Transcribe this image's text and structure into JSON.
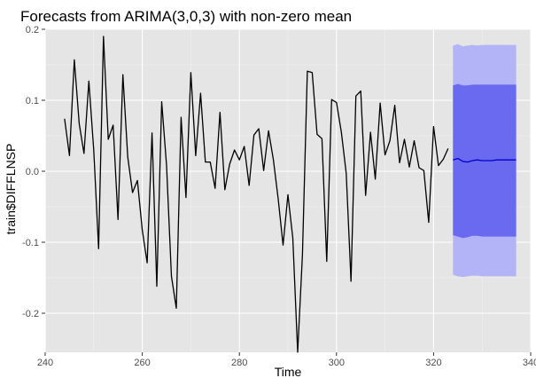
{
  "chart_data": {
    "type": "line",
    "title": "Forecasts from ARIMA(3,0,3) with non-zero mean",
    "xlabel": "Time",
    "ylabel": "train$DIFFLNSP",
    "xlim": [
      240,
      340
    ],
    "ylim": [
      -0.255,
      0.2
    ],
    "x_ticks": [
      240,
      260,
      280,
      300,
      320,
      340
    ],
    "y_ticks": [
      -0.2,
      -0.1,
      0.0,
      0.1,
      0.2
    ],
    "y_tick_labels": [
      "-0.2",
      "-0.1",
      "0.0",
      "0.1",
      "0.2"
    ],
    "grid": true,
    "panel_background": "#e5e5e5",
    "series": [
      {
        "type": "line",
        "color": "#000000",
        "x": [
          244,
          245,
          246,
          247,
          248,
          249,
          250,
          251,
          252,
          253,
          254,
          255,
          256,
          257,
          258,
          259,
          260,
          261,
          262,
          263,
          264,
          265,
          266,
          267,
          268,
          269,
          270,
          271,
          272,
          273,
          274,
          275,
          276,
          277,
          278,
          279,
          280,
          281,
          282,
          283,
          284,
          285,
          286,
          287,
          288,
          289,
          290,
          291,
          292,
          293,
          294,
          295,
          296,
          297,
          298,
          299,
          300,
          301,
          302,
          303,
          304,
          305,
          306,
          307,
          308,
          309,
          310,
          311,
          312,
          313,
          314,
          315,
          316,
          317,
          318,
          319,
          320,
          321,
          322,
          323
        ],
        "y": [
          0.074,
          0.022,
          0.157,
          0.067,
          0.025,
          0.127,
          0.03,
          -0.109,
          0.19,
          0.045,
          0.065,
          -0.068,
          0.136,
          0.02,
          -0.03,
          -0.013,
          -0.083,
          -0.129,
          0.054,
          -0.162,
          0.098,
          0.008,
          -0.148,
          -0.193,
          0.076,
          -0.037,
          0.139,
          0.022,
          0.11,
          0.013,
          0.013,
          -0.024,
          0.083,
          -0.026,
          0.01,
          0.03,
          0.016,
          0.035,
          -0.02,
          0.051,
          0.06,
          0.001,
          0.057,
          0.016,
          -0.039,
          -0.104,
          -0.033,
          -0.094,
          -0.255,
          -0.117,
          0.141,
          0.139,
          0.052,
          0.046,
          -0.127,
          0.101,
          0.097,
          0.055,
          -0.003,
          -0.155,
          0.106,
          0.113,
          -0.034,
          0.055,
          -0.011,
          0.096,
          0.023,
          0.043,
          0.093,
          0.012,
          0.045,
          0.006,
          0.043,
          0.005,
          0.001,
          -0.072,
          0.063,
          0.008,
          0.017,
          0.032
        ]
      },
      {
        "name": "forecast",
        "type": "line",
        "color": "#0000cc",
        "x": [
          324,
          325,
          326,
          327,
          328,
          329,
          330,
          331,
          332,
          333,
          334,
          335,
          336,
          337
        ],
        "y": [
          0.016,
          0.018,
          0.014,
          0.013,
          0.015,
          0.016,
          0.015,
          0.015,
          0.015,
          0.016,
          0.016,
          0.016,
          0.016,
          0.016
        ]
      }
    ],
    "bands": [
      {
        "level": "95%",
        "color": "#b3b3f7",
        "x": [
          324,
          325,
          326,
          327,
          328,
          329,
          330,
          331,
          332,
          333,
          334,
          335,
          336,
          337
        ],
        "lower": [
          -0.146,
          -0.148,
          -0.149,
          -0.148,
          -0.147,
          -0.147,
          -0.148,
          -0.148,
          -0.148,
          -0.148,
          -0.148,
          -0.148,
          -0.148,
          -0.148
        ],
        "upper": [
          0.177,
          0.179,
          0.176,
          0.177,
          0.178,
          0.177,
          0.178,
          0.178,
          0.178,
          0.178,
          0.178,
          0.178,
          0.178,
          0.178
        ]
      },
      {
        "level": "80%",
        "color": "#6a6af0",
        "x": [
          324,
          325,
          326,
          327,
          328,
          329,
          330,
          331,
          332,
          333,
          334,
          335,
          336,
          337
        ],
        "lower": [
          -0.09,
          -0.092,
          -0.094,
          -0.093,
          -0.091,
          -0.091,
          -0.092,
          -0.092,
          -0.092,
          -0.092,
          -0.092,
          -0.092,
          -0.092,
          -0.092
        ],
        "upper": [
          0.121,
          0.123,
          0.121,
          0.121,
          0.122,
          0.122,
          0.122,
          0.122,
          0.122,
          0.122,
          0.122,
          0.122,
          0.122,
          0.122
        ]
      }
    ]
  }
}
